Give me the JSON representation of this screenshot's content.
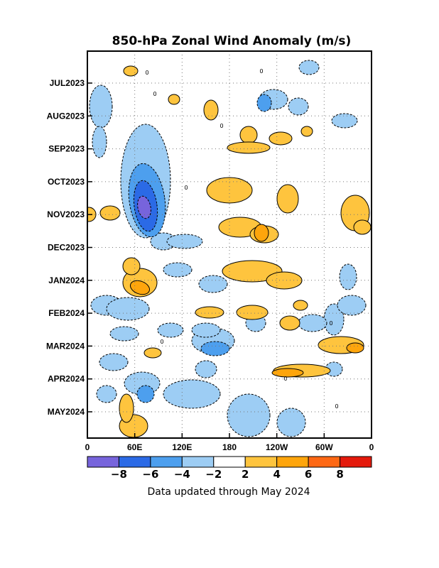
{
  "chart_data": {
    "type": "heatmap",
    "title": "850-hPa Zonal Wind Anomaly (m/s)",
    "y_ticks": [
      "JUL2023",
      "AUG2023",
      "SEP2023",
      "OCT2023",
      "NOV2023",
      "DEC2023",
      "JAN2024",
      "FEB2024",
      "MAR2024",
      "APR2024",
      "MAY2024"
    ],
    "x_ticks": [
      "0",
      "60E",
      "120E",
      "180",
      "120W",
      "60W",
      "0"
    ],
    "xlim_lon": [
      0,
      360
    ],
    "colorbar": {
      "labels": [
        "-8",
        "-6",
        "-4",
        "-2",
        "2",
        "4",
        "6",
        "8"
      ],
      "colors": [
        "#7764dc",
        "#2b6ae6",
        "#4d9fee",
        "#9dcdf4",
        "#ffffff",
        "#fec43e",
        "#fea50c",
        "#fe6814",
        "#e41a0c"
      ]
    },
    "contour_zero_label": "0",
    "anomalies": [
      {
        "name": "indian-ocean-easterly-core",
        "lon": 72,
        "month": 3.9,
        "value": -8.5
      },
      {
        "name": "west-pacific-easterly",
        "lon": 165,
        "month": 7.6,
        "value": -5
      },
      {
        "name": "east-pacific-westerly",
        "lon": 225,
        "month": 4.6,
        "value": 5.5
      },
      {
        "name": "central-pacific-westerly",
        "lon": 245,
        "month": 6.4,
        "value": 4.5
      },
      {
        "name": "indian-westerly-jan",
        "lon": 70,
        "month": 6.7,
        "value": 4.5
      },
      {
        "name": "atlantic-westerly-nov",
        "lon": 345,
        "month": 4.5,
        "value": 4.2
      },
      {
        "name": "east-pacific-westerly-apr",
        "lon": 265,
        "month": 9.5,
        "value": 5
      },
      {
        "name": "atlantic-westerly-mar",
        "lon": 330,
        "month": 8.1,
        "value": 4.5
      }
    ]
  },
  "footer": "Data updated through May 2024"
}
